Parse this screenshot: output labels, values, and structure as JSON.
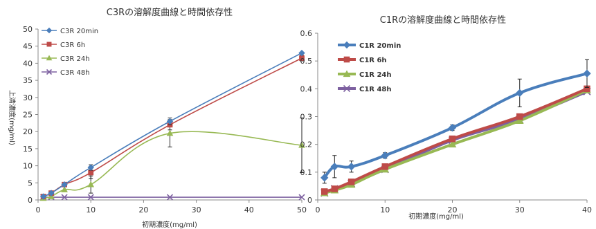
{
  "chart_data": [
    {
      "type": "line",
      "title": "C3Rの溶解度曲線と時間依存性",
      "xlabel": "初期濃度(mg/ml)",
      "ylabel": "上清濃度(mg/ml)",
      "xlim": [
        0,
        50
      ],
      "ylim": [
        0,
        50
      ],
      "xticks": [
        "0",
        "10",
        "20",
        "30",
        "40",
        "50"
      ],
      "yticks": [
        "0",
        "5",
        "10",
        "15",
        "20",
        "25",
        "30",
        "35",
        "40",
        "45",
        "50"
      ],
      "grid": false,
      "legend_position": "top-left",
      "series": [
        {
          "name": "C3R 20min",
          "color": "#4a7ebb",
          "marker": "diamond",
          "x": [
            1,
            2.5,
            5,
            10,
            25,
            50
          ],
          "y": [
            1,
            2,
            4.5,
            9.5,
            23,
            43
          ],
          "err": [
            0,
            0,
            0,
            0.8,
            1,
            0
          ]
        },
        {
          "name": "C3R 6h",
          "color": "#be4b48",
          "marker": "square",
          "x": [
            1,
            2.5,
            5,
            10,
            25,
            50
          ],
          "y": [
            1,
            2,
            4.5,
            8,
            22,
            41.5
          ],
          "err": [
            0,
            0,
            0,
            1.8,
            1.5,
            0.8
          ]
        },
        {
          "name": "C3R 24h",
          "color": "#98b954",
          "marker": "triangle",
          "x": [
            1,
            2.5,
            5,
            10,
            25,
            50
          ],
          "y": [
            0.5,
            1,
            3,
            4.5,
            19.5,
            16
          ],
          "err": [
            0,
            0,
            0,
            2.5,
            4,
            8
          ]
        },
        {
          "name": "C3R 48h",
          "color": "#7d60a0",
          "marker": "x",
          "x": [
            1,
            2.5,
            5,
            10,
            25,
            50
          ],
          "y": [
            0.8,
            0.8,
            0.8,
            0.8,
            0.8,
            0.8
          ],
          "err": [
            0,
            0,
            0,
            0,
            0,
            0
          ]
        }
      ]
    },
    {
      "type": "line",
      "title": "C1Rの溶解度曲線と時間依存性",
      "xlabel": "初期濃度(mg/ml)",
      "ylabel": "",
      "xlim": [
        0,
        40
      ],
      "ylim": [
        0,
        0.6
      ],
      "xticks": [
        "0",
        "10",
        "20",
        "30",
        "40"
      ],
      "yticks": [
        "0",
        "0.1",
        "0.2",
        "0.3",
        "0.4",
        "0.5",
        "0.6"
      ],
      "grid": false,
      "legend_position": "top-left",
      "series": [
        {
          "name": "C1R 20min",
          "color": "#4a7ebb",
          "marker": "diamond",
          "x": [
            1,
            2.5,
            5,
            10,
            20,
            30,
            40
          ],
          "y": [
            0.08,
            0.12,
            0.12,
            0.16,
            0.26,
            0.385,
            0.455
          ],
          "err": [
            0.02,
            0.04,
            0.02,
            0.01,
            0.01,
            0.05,
            0.05
          ]
        },
        {
          "name": "C1R 6h",
          "color": "#be4b48",
          "marker": "square",
          "x": [
            1,
            2.5,
            5,
            10,
            20,
            30,
            40
          ],
          "y": [
            0.03,
            0.04,
            0.065,
            0.12,
            0.22,
            0.3,
            0.4
          ],
          "err": [
            0,
            0,
            0,
            0,
            0,
            0,
            0
          ]
        },
        {
          "name": "C1R 24h",
          "color": "#98b954",
          "marker": "triangle",
          "x": [
            1,
            2.5,
            5,
            10,
            20,
            30,
            40
          ],
          "y": [
            0.025,
            0.035,
            0.055,
            0.11,
            0.2,
            0.285,
            0.395
          ],
          "err": [
            0,
            0,
            0,
            0,
            0,
            0,
            0
          ]
        },
        {
          "name": "C1R 48h",
          "color": "#7d60a0",
          "marker": "x",
          "x": [
            1,
            2.5,
            5,
            10,
            20,
            30,
            40
          ],
          "y": [
            0.025,
            0.04,
            0.06,
            0.11,
            0.215,
            0.29,
            0.39
          ],
          "err": [
            0,
            0,
            0,
            0,
            0,
            0,
            0
          ]
        }
      ]
    }
  ]
}
